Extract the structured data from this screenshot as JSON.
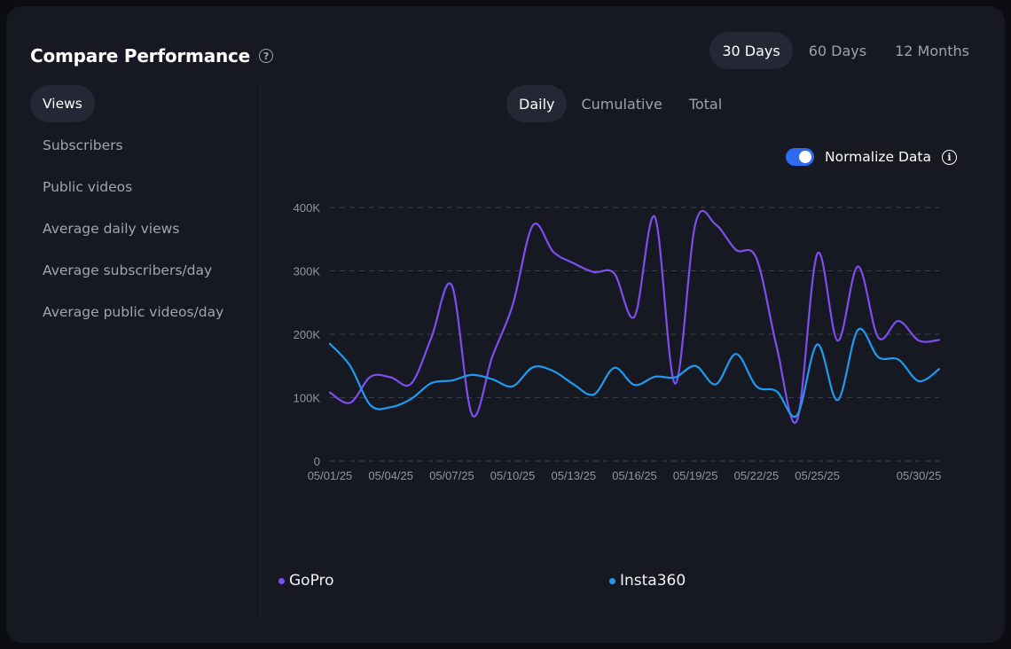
{
  "header": {
    "title": "Compare Performance",
    "help_icon": "question-circle-icon",
    "ranges": [
      "30 Days",
      "60 Days",
      "12 Months"
    ],
    "active_range": "30 Days"
  },
  "metrics": {
    "items": [
      "Views",
      "Subscribers",
      "Public videos",
      "Average daily views",
      "Average subscribers/day",
      "Average public videos/day"
    ],
    "active": "Views"
  },
  "modes": {
    "items": [
      "Daily",
      "Cumulative",
      "Total"
    ],
    "active": "Daily"
  },
  "normalize": {
    "label": "Normalize Data",
    "enabled": true,
    "info_icon": "info-circle-icon"
  },
  "colors": {
    "background": "#161922",
    "gopro": "#7d4ff0",
    "insta360": "#1e9bf0",
    "toggle": "#2f6bf0"
  },
  "chart_data": {
    "type": "line",
    "x": [
      "05/01/25",
      "05/02/25",
      "05/03/25",
      "05/04/25",
      "05/05/25",
      "05/06/25",
      "05/07/25",
      "05/08/25",
      "05/09/25",
      "05/10/25",
      "05/11/25",
      "05/12/25",
      "05/13/25",
      "05/14/25",
      "05/15/25",
      "05/16/25",
      "05/17/25",
      "05/18/25",
      "05/19/25",
      "05/20/25",
      "05/21/25",
      "05/22/25",
      "05/23/25",
      "05/24/25",
      "05/25/25",
      "05/26/25",
      "05/27/25",
      "05/28/25",
      "05/29/25",
      "05/30/25",
      "05/31/25"
    ],
    "x_tick_labels": [
      "05/01/25",
      "05/04/25",
      "05/07/25",
      "05/10/25",
      "05/13/25",
      "05/16/25",
      "05/19/25",
      "05/22/25",
      "05/25/25",
      "05/30/25"
    ],
    "series": [
      {
        "name": "GoPro",
        "color": "#7d4ff0",
        "values": [
          108000,
          92000,
          133000,
          132000,
          122000,
          195000,
          277000,
          73000,
          165000,
          246000,
          372000,
          330000,
          312000,
          298000,
          296000,
          228000,
          385000,
          122000,
          375000,
          373000,
          333000,
          320000,
          180000,
          64000,
          327000,
          190000,
          307000,
          195000,
          221000,
          190000,
          191000
        ]
      },
      {
        "name": "Insta360",
        "color": "#1e9bf0",
        "values": [
          185000,
          150000,
          88000,
          85000,
          98000,
          123000,
          127000,
          136000,
          129000,
          118000,
          148000,
          142000,
          121000,
          105000,
          147000,
          120000,
          133000,
          132000,
          150000,
          121000,
          169000,
          118000,
          110000,
          72000,
          184000,
          96000,
          207000,
          164000,
          160000,
          126000,
          145000
        ]
      }
    ],
    "yticks": [
      "0",
      "100K",
      "200K",
      "300K",
      "400K"
    ],
    "ylim": [
      0,
      400000
    ],
    "grid": true,
    "legend_position": "bottom"
  }
}
